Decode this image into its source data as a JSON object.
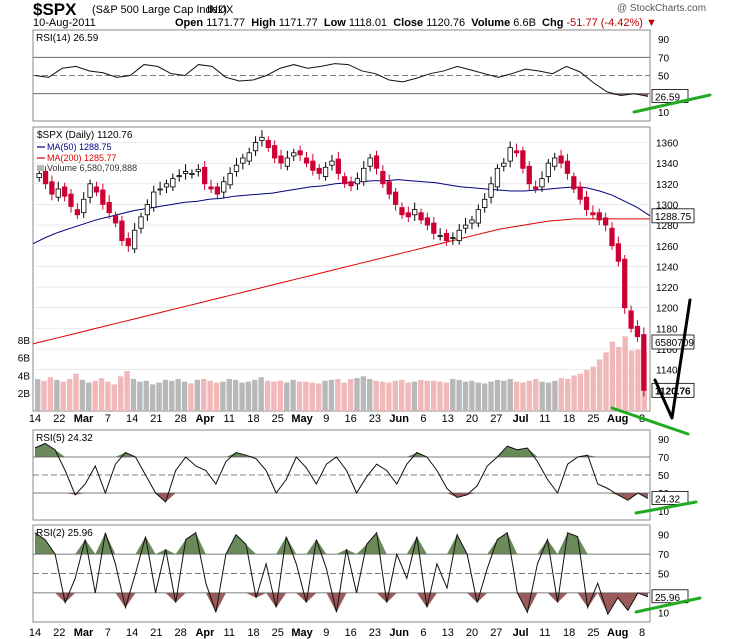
{
  "header": {
    "symbol": "$SPX",
    "name": "(S&P 500 Large Cap Index)",
    "exchange": "INDX",
    "date": "10-Aug-2011",
    "open_label": "Open",
    "open": "1171.77",
    "high_label": "High",
    "high": "1171.77",
    "low_label": "Low",
    "low": "1118.01",
    "close_label": "Close",
    "close": "1120.76",
    "volume_label": "Volume",
    "volume": "6.6B",
    "chg_label": "Chg",
    "chg": "-51.77 (-4.42%)",
    "brand": "@ StockCharts.com"
  },
  "colors": {
    "up": "#000000",
    "down": "#cc0033",
    "ma50": "#000080",
    "ma200": "#dd0000",
    "rsi_high_fill": "#6a8a5a",
    "rsi_low_fill": "#9b5a5a",
    "trendline": "#22aa22"
  },
  "x_axis": {
    "labels": [
      "14",
      "22",
      "Mar",
      "7",
      "14",
      "21",
      "28",
      "Apr",
      "11",
      "18",
      "25",
      "May",
      "9",
      "16",
      "23",
      "Jun",
      "6",
      "13",
      "20",
      "27",
      "Jul",
      "11",
      "18",
      "25",
      "Aug",
      "8"
    ]
  },
  "chart_data": [
    {
      "type": "line",
      "title": "RSI(14) 26.59",
      "series": [
        {
          "name": "RSI(14)",
          "values": [
            50,
            48,
            58,
            60,
            55,
            53,
            48,
            50,
            62,
            60,
            52,
            50,
            62,
            60,
            48,
            44,
            45,
            50,
            58,
            62,
            58,
            60,
            63,
            62,
            55,
            52,
            45,
            43,
            47,
            52,
            55,
            60,
            56,
            52,
            48,
            52,
            57,
            55,
            52,
            60,
            54,
            42,
            32,
            28,
            30,
            27
          ]
        }
      ],
      "yticks": [
        90,
        70,
        50,
        30,
        10
      ],
      "last_label": "26.59"
    },
    {
      "type": "candlestick",
      "title": "$SPX (Daily) 1120.76",
      "legend": [
        "MA(50) 1288.75",
        "MA(200) 1285.77",
        "Volume 6,580,709,888"
      ],
      "yticks": [
        1360,
        1340,
        1320,
        1300,
        1280,
        1260,
        1240,
        1220,
        1200,
        1180,
        1160,
        1140,
        1120
      ],
      "close_label": "1120.76",
      "ma50_label": "1288.75",
      "volume_label": "6580709",
      "volume_ticks": [
        "8B",
        "6B",
        "4B",
        "2B"
      ],
      "closes": [
        1330,
        1320,
        1310,
        1315,
        1308,
        1298,
        1290,
        1305,
        1320,
        1312,
        1300,
        1292,
        1282,
        1265,
        1260,
        1275,
        1288,
        1300,
        1312,
        1315,
        1320,
        1325,
        1328,
        1332,
        1330,
        1334,
        1320,
        1315,
        1310,
        1322,
        1330,
        1338,
        1345,
        1350,
        1360,
        1365,
        1355,
        1345,
        1340,
        1345,
        1350,
        1348,
        1340,
        1333,
        1330,
        1336,
        1342,
        1330,
        1320,
        1318,
        1325,
        1335,
        1345,
        1335,
        1320,
        1310,
        1300,
        1290,
        1288,
        1295,
        1285,
        1280,
        1272,
        1270,
        1265,
        1268,
        1275,
        1280,
        1285,
        1295,
        1305,
        1320,
        1335,
        1340,
        1355,
        1350,
        1335,
        1320,
        1315,
        1325,
        1340,
        1345,
        1340,
        1330,
        1315,
        1305,
        1295,
        1290,
        1285,
        1280,
        1260,
        1245,
        1200,
        1180,
        1172,
        1120
      ],
      "ma50": [
        1262,
        1268,
        1273,
        1277,
        1281,
        1285,
        1288,
        1291,
        1294,
        1296,
        1298,
        1300,
        1302,
        1303,
        1305,
        1306,
        1308,
        1309,
        1310,
        1311,
        1313,
        1315,
        1317,
        1318,
        1320,
        1321,
        1322,
        1323,
        1323,
        1324,
        1323,
        1322,
        1321,
        1319,
        1317,
        1316,
        1315,
        1314,
        1313,
        1313,
        1314,
        1315,
        1316,
        1317,
        1316,
        1313,
        1309,
        1303,
        1297,
        1289
      ],
      "ma200": [
        1165,
        1168,
        1171,
        1174,
        1177,
        1180,
        1183,
        1186,
        1189,
        1192,
        1195,
        1198,
        1201,
        1204,
        1207,
        1210,
        1213,
        1216,
        1219,
        1222,
        1225,
        1228,
        1231,
        1234,
        1237,
        1240,
        1243,
        1246,
        1249,
        1252,
        1255,
        1258,
        1261,
        1264,
        1267,
        1270,
        1273,
        1276,
        1278,
        1280,
        1282,
        1284,
        1285,
        1286,
        1286,
        1286,
        1286,
        1286,
        1286,
        1286
      ],
      "volume": [
        3.6,
        3.4,
        3.8,
        3.5,
        3.3,
        3.6,
        4.2,
        3.5,
        3.2,
        3.4,
        3.7,
        3.3,
        3.0,
        3.9,
        4.5,
        3.6,
        3.3,
        3.4,
        3.0,
        3.2,
        3.5,
        3.4,
        3.6,
        3.3,
        3.1,
        3.5,
        3.6,
        3.4,
        3.2,
        3.3,
        3.6,
        3.5,
        3.2,
        3.3,
        3.5,
        3.8,
        3.4,
        3.3,
        3.4,
        3.2,
        3.5,
        3.3,
        3.3,
        3.2,
        3.1,
        3.4,
        3.5,
        3.6,
        3.2,
        3.6,
        3.7,
        3.9,
        3.6,
        3.4,
        3.3,
        3.2,
        3.4,
        3.5,
        3.2,
        3.3,
        3.5,
        3.4,
        3.4,
        3.3,
        3.2,
        3.6,
        3.5,
        3.3,
        3.4,
        3.2,
        3.1,
        3.3,
        3.5,
        3.4,
        3.6,
        3.3,
        3.2,
        3.4,
        3.6,
        3.3,
        3.2,
        3.4,
        3.7,
        3.6,
        4.0,
        4.2,
        4.6,
        5.0,
        5.8,
        6.6,
        7.8,
        7.2,
        8.4,
        6.8,
        6.9,
        6.6
      ]
    },
    {
      "type": "line",
      "title": "RSI(5) 24.32",
      "series": [
        {
          "name": "RSI(5)",
          "values": [
            80,
            85,
            78,
            55,
            28,
            40,
            60,
            30,
            62,
            75,
            70,
            50,
            30,
            20,
            55,
            70,
            60,
            55,
            40,
            65,
            75,
            72,
            68,
            55,
            30,
            45,
            70,
            58,
            40,
            62,
            70,
            55,
            30,
            48,
            62,
            55,
            40,
            62,
            75,
            70,
            55,
            35,
            25,
            28,
            38,
            60,
            70,
            82,
            78,
            80,
            65,
            45,
            30,
            62,
            70,
            72,
            40,
            35,
            28,
            22,
            30,
            24
          ]
        }
      ],
      "yticks": [
        90,
        70,
        50,
        30,
        10
      ],
      "last_label": "24.32"
    },
    {
      "type": "line",
      "title": "RSI(2) 25.96",
      "series": [
        {
          "name": "RSI(2)",
          "values": [
            92,
            85,
            70,
            20,
            45,
            85,
            30,
            92,
            60,
            15,
            50,
            88,
            30,
            75,
            20,
            85,
            92,
            40,
            10,
            70,
            90,
            80,
            25,
            60,
            15,
            88,
            60,
            20,
            85,
            55,
            10,
            75,
            30,
            80,
            92,
            20,
            70,
            45,
            88,
            15,
            60,
            35,
            90,
            70,
            20,
            55,
            85,
            92,
            30,
            10,
            60,
            85,
            20,
            92,
            88,
            15,
            40,
            8,
            25,
            12,
            30,
            26
          ]
        }
      ],
      "yticks": [
        90,
        70,
        50,
        30,
        10
      ],
      "last_label": "25.96"
    }
  ]
}
